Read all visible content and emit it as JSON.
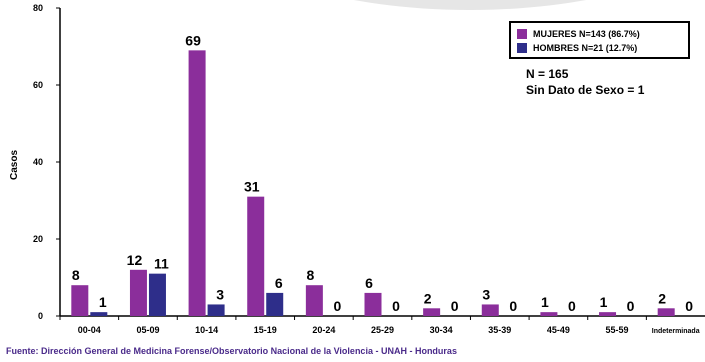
{
  "chart_data": {
    "type": "bar",
    "categories": [
      "00-04",
      "05-09",
      "10-14",
      "15-19",
      "20-24",
      "25-29",
      "30-34",
      "35-39",
      "45-49",
      "55-59",
      "Indeterminada"
    ],
    "series": [
      {
        "name": "MUJERES N=143 (86.7%)",
        "color": "#8b2e9b",
        "values": [
          8,
          12,
          69,
          31,
          8,
          6,
          2,
          3,
          1,
          1,
          2
        ]
      },
      {
        "name": "HOMBRES N=21 (12.7%)",
        "color": "#2e2e8a",
        "values": [
          1,
          11,
          3,
          6,
          0,
          0,
          0,
          0,
          0,
          0,
          0
        ]
      }
    ],
    "ylabel": "Casos",
    "ylim": [
      0,
      80
    ],
    "yticks": [
      0,
      20,
      40,
      60,
      80
    ],
    "legend_position": "top-right",
    "annotations": [
      "N = 165",
      "Sin Dato de Sexo = 1"
    ],
    "source": "Fuente: Dirección General de Medicina Forense/Observatorio Nacional de la Violencia - UNAH - Honduras"
  }
}
